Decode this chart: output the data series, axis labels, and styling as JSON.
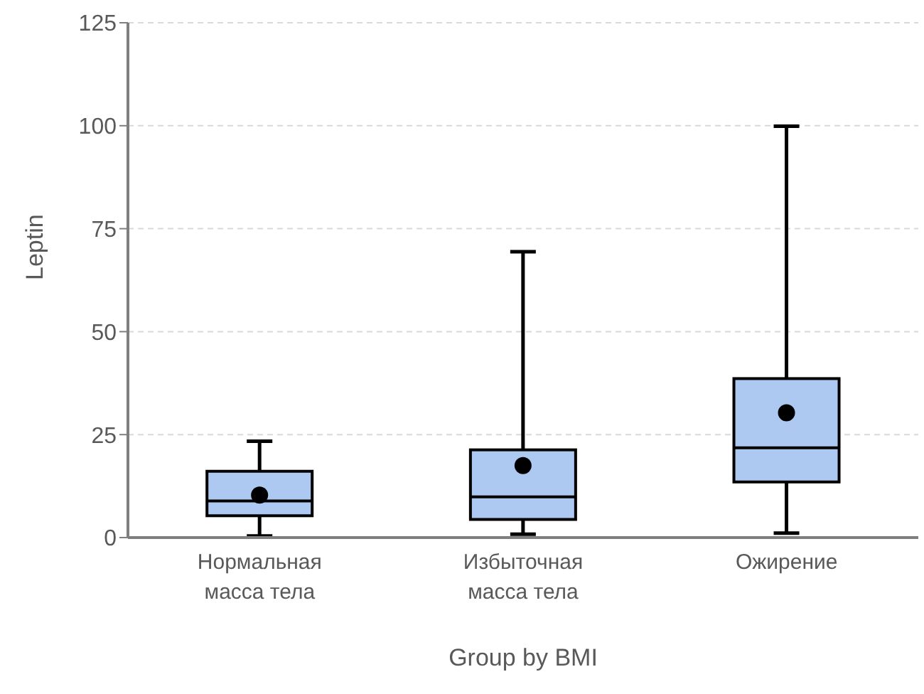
{
  "chart_data": {
    "type": "box",
    "xlabel": "Group by BMI",
    "ylabel": "Leptin",
    "categories": [
      "Нормальная масса тела",
      "Избыточная масса тела",
      "Ожирение"
    ],
    "color": "#adc9f1",
    "boxes": [
      {
        "low": 0.4,
        "q1": 5.3,
        "median": 8.9,
        "q3": 16.1,
        "high": 23.4,
        "mean": 10.3
      },
      {
        "low": 0.8,
        "q1": 4.4,
        "median": 9.9,
        "q3": 21.3,
        "high": 69.4,
        "mean": 17.5
      },
      {
        "low": 1.1,
        "q1": 13.5,
        "median": 21.8,
        "q3": 38.6,
        "high": 99.9,
        "mean": 30.3
      }
    ],
    "ylim": [
      0,
      125
    ],
    "yticks": [
      0,
      25,
      50,
      75,
      100,
      125
    ],
    "grid": "y",
    "legend": false
  }
}
